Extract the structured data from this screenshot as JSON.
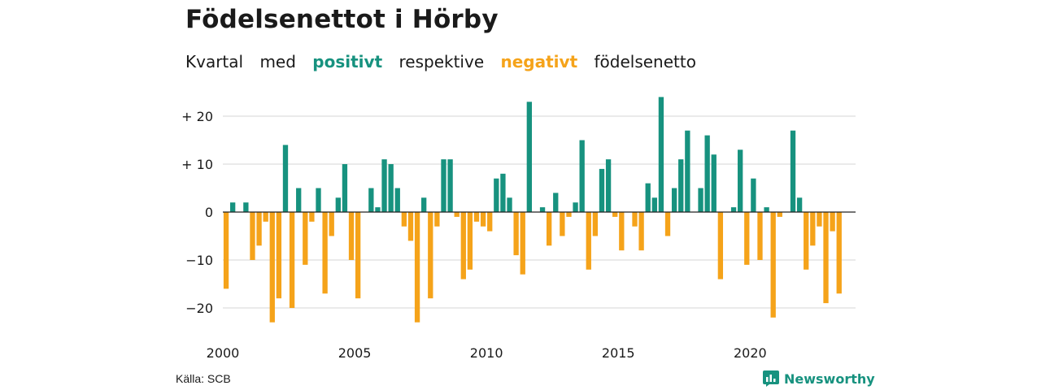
{
  "title": "Födelsenettot i Hörby",
  "subtitle": {
    "word1": "Kvartal",
    "word2": "med",
    "positive": "positivt",
    "word3": "respektive",
    "negative": "negativt",
    "word4": "födelsenetto"
  },
  "colors": {
    "positive": "#17927f",
    "negative": "#f5a31a",
    "grid": "#dddddd",
    "zero": "#222222"
  },
  "source": "Källa: SCB",
  "brand": "Newsworthy",
  "chart_data": {
    "type": "bar",
    "title": "Födelsenettot i Hörby",
    "xlabel": "",
    "ylabel": "",
    "ylim": [
      -25,
      25
    ],
    "yticks": [
      -20,
      -10,
      0,
      10,
      20
    ],
    "ytick_labels": [
      "−20",
      "−10",
      "0",
      "+ 10",
      "+ 20"
    ],
    "xtick_labels": [
      "2000",
      "2005",
      "2010",
      "2015",
      "2020"
    ],
    "grid": true,
    "categories": [
      "2000Q1",
      "2000Q2",
      "2000Q3",
      "2000Q4",
      "2001Q1",
      "2001Q2",
      "2001Q3",
      "2001Q4",
      "2002Q1",
      "2002Q2",
      "2002Q3",
      "2002Q4",
      "2003Q1",
      "2003Q2",
      "2003Q3",
      "2003Q4",
      "2004Q1",
      "2004Q2",
      "2004Q3",
      "2004Q4",
      "2005Q1",
      "2005Q2",
      "2005Q3",
      "2005Q4",
      "2006Q1",
      "2006Q2",
      "2006Q3",
      "2006Q4",
      "2007Q1",
      "2007Q2",
      "2007Q3",
      "2007Q4",
      "2008Q1",
      "2008Q2",
      "2008Q3",
      "2008Q4",
      "2009Q1",
      "2009Q2",
      "2009Q3",
      "2009Q4",
      "2010Q1",
      "2010Q2",
      "2010Q3",
      "2010Q4",
      "2011Q1",
      "2011Q2",
      "2011Q3",
      "2011Q4",
      "2012Q1",
      "2012Q2",
      "2012Q3",
      "2012Q4",
      "2013Q1",
      "2013Q2",
      "2013Q3",
      "2013Q4",
      "2014Q1",
      "2014Q2",
      "2014Q3",
      "2014Q4",
      "2015Q1",
      "2015Q2",
      "2015Q3",
      "2015Q4",
      "2016Q1",
      "2016Q2",
      "2016Q3",
      "2016Q4",
      "2017Q1",
      "2017Q2",
      "2017Q3",
      "2017Q4",
      "2018Q1",
      "2018Q2",
      "2018Q3",
      "2018Q4",
      "2019Q1",
      "2019Q2",
      "2019Q3",
      "2019Q4",
      "2020Q1",
      "2020Q2",
      "2020Q3",
      "2020Q4",
      "2021Q1",
      "2021Q2",
      "2021Q3",
      "2021Q4",
      "2022Q1",
      "2022Q2",
      "2022Q3",
      "2022Q4",
      "2023Q1",
      "2023Q2",
      "2023Q3",
      "2023Q4"
    ],
    "values": [
      -16,
      2,
      0,
      2,
      -10,
      -7,
      -2,
      -23,
      -18,
      14,
      -20,
      5,
      -11,
      -2,
      5,
      -17,
      -5,
      3,
      10,
      -10,
      -18,
      0,
      5,
      1,
      11,
      10,
      5,
      -3,
      -6,
      -23,
      3,
      -18,
      -3,
      11,
      11,
      -1,
      -14,
      -12,
      -2,
      -3,
      -4,
      7,
      8,
      3,
      -9,
      -13,
      23,
      0,
      1,
      -7,
      4,
      -5,
      -1,
      2,
      15,
      -12,
      -5,
      9,
      11,
      -1,
      -8,
      0,
      -3,
      -8,
      6,
      3,
      24,
      -5,
      5,
      11,
      17,
      0,
      5,
      16,
      12,
      -14,
      0,
      1,
      13,
      -11,
      7,
      -10,
      1,
      -22,
      -1,
      0,
      17,
      3,
      -12,
      -7,
      -3,
      -19,
      -4,
      -17,
      0,
      0
    ]
  }
}
